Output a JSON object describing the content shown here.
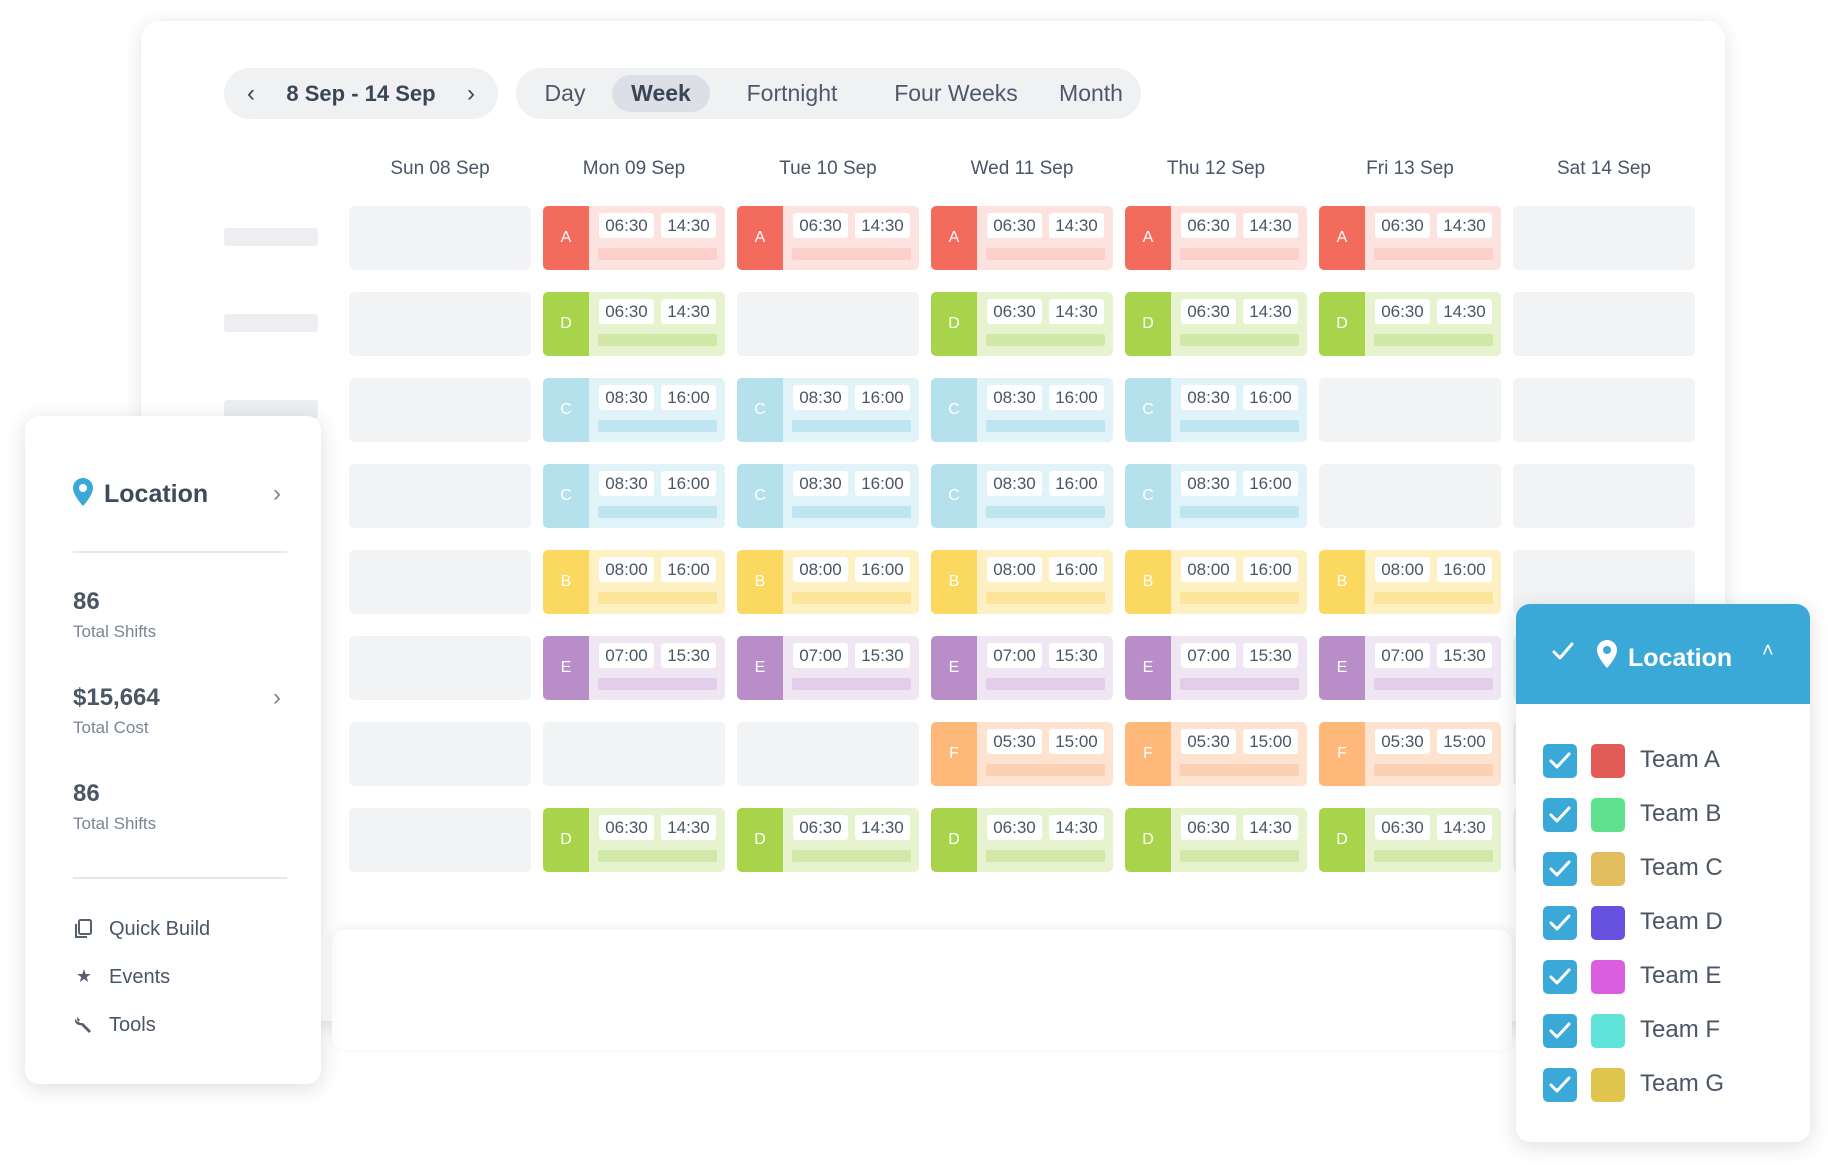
{
  "header": {
    "date_range": "8 Sep - 14 Sep",
    "prev_icon": "chevron-left-icon",
    "next_icon": "chevron-right-icon",
    "views": [
      "Day",
      "Week",
      "Fortnight",
      "Four Weeks",
      "Month"
    ],
    "active_view": "Week"
  },
  "days": [
    "Sun 08 Sep",
    "Mon 09 Sep",
    "Tue 10 Sep",
    "Wed 11 Sep",
    "Thu 12 Sep",
    "Fri 13 Sep",
    "Sat 14 Sep"
  ],
  "rows": [
    {
      "tag": "A",
      "tag_color": "#f26b5c",
      "bg": "#fde3e0",
      "bar": "#fdd0cc",
      "start": "06:30",
      "end": "14:30",
      "days": [
        false,
        true,
        true,
        true,
        true,
        true,
        false
      ]
    },
    {
      "tag": "D",
      "tag_color": "#a8d44b",
      "bg": "#e7f3cf",
      "bar": "#d2e8a8",
      "start": "06:30",
      "end": "14:30",
      "days": [
        false,
        true,
        false,
        true,
        true,
        true,
        false
      ]
    },
    {
      "tag": "C",
      "tag_color": "#b4e1ec",
      "bg": "#dff3f8",
      "bar": "#bfe6f0",
      "start": "08:30",
      "end": "16:00",
      "days": [
        false,
        true,
        true,
        true,
        true,
        false,
        false
      ]
    },
    {
      "tag": "C",
      "tag_color": "#b4e1ec",
      "bg": "#dff3f8",
      "bar": "#bfe6f0",
      "start": "08:30",
      "end": "16:00",
      "days": [
        false,
        true,
        true,
        true,
        true,
        false,
        false
      ]
    },
    {
      "tag": "B",
      "tag_color": "#fbd85f",
      "bg": "#fdf0c2",
      "bar": "#fce49a",
      "start": "08:00",
      "end": "16:00",
      "days": [
        false,
        true,
        true,
        true,
        true,
        true,
        false
      ]
    },
    {
      "tag": "E",
      "tag_color": "#b98dc8",
      "bg": "#f0e5f3",
      "bar": "#e2cdea",
      "start": "07:00",
      "end": "15:30",
      "days": [
        false,
        true,
        true,
        true,
        true,
        true,
        false
      ]
    },
    {
      "tag": "F",
      "tag_color": "#fdb87a",
      "bg": "#fee4d0",
      "bar": "#fdd0b6",
      "start": "05:30",
      "end": "15:00",
      "days": [
        false,
        false,
        false,
        true,
        true,
        true,
        false
      ]
    },
    {
      "tag": "D",
      "tag_color": "#a8d44b",
      "bg": "#e7f3cf",
      "bar": "#d2e8a8",
      "start": "06:30",
      "end": "14:30",
      "days": [
        false,
        true,
        true,
        true,
        true,
        true,
        false
      ]
    }
  ],
  "left_panel": {
    "location_label": "Location",
    "location_icon": "map-pin-icon",
    "stats": [
      {
        "value": "86",
        "label": "Total Shifts"
      },
      {
        "value": "$15,664",
        "label": "Total Cost"
      },
      {
        "value": "86",
        "label": "Total Shifts"
      }
    ],
    "menu": [
      {
        "label": "Quick Build",
        "icon": "copy-icon"
      },
      {
        "label": "Events",
        "icon": "star-icon"
      },
      {
        "label": "Tools",
        "icon": "wrench-icon"
      }
    ]
  },
  "right_panel": {
    "title": "Location",
    "header_check_icon": "check-icon",
    "pin_icon": "map-pin-icon",
    "collapse_icon": "chevron-up-icon",
    "teams": [
      {
        "name": "Team A",
        "color": "#e25c56",
        "checked": true
      },
      {
        "name": "Team B",
        "color": "#5fe08c",
        "checked": true
      },
      {
        "name": "Team C",
        "color": "#e2be5e",
        "checked": true
      },
      {
        "name": "Team D",
        "color": "#6652de",
        "checked": true
      },
      {
        "name": "Team E",
        "color": "#d95fdf",
        "checked": true
      },
      {
        "name": "Team F",
        "color": "#5fe2d8",
        "checked": true
      },
      {
        "name": "Team G",
        "color": "#e0c64f",
        "checked": true
      }
    ]
  }
}
